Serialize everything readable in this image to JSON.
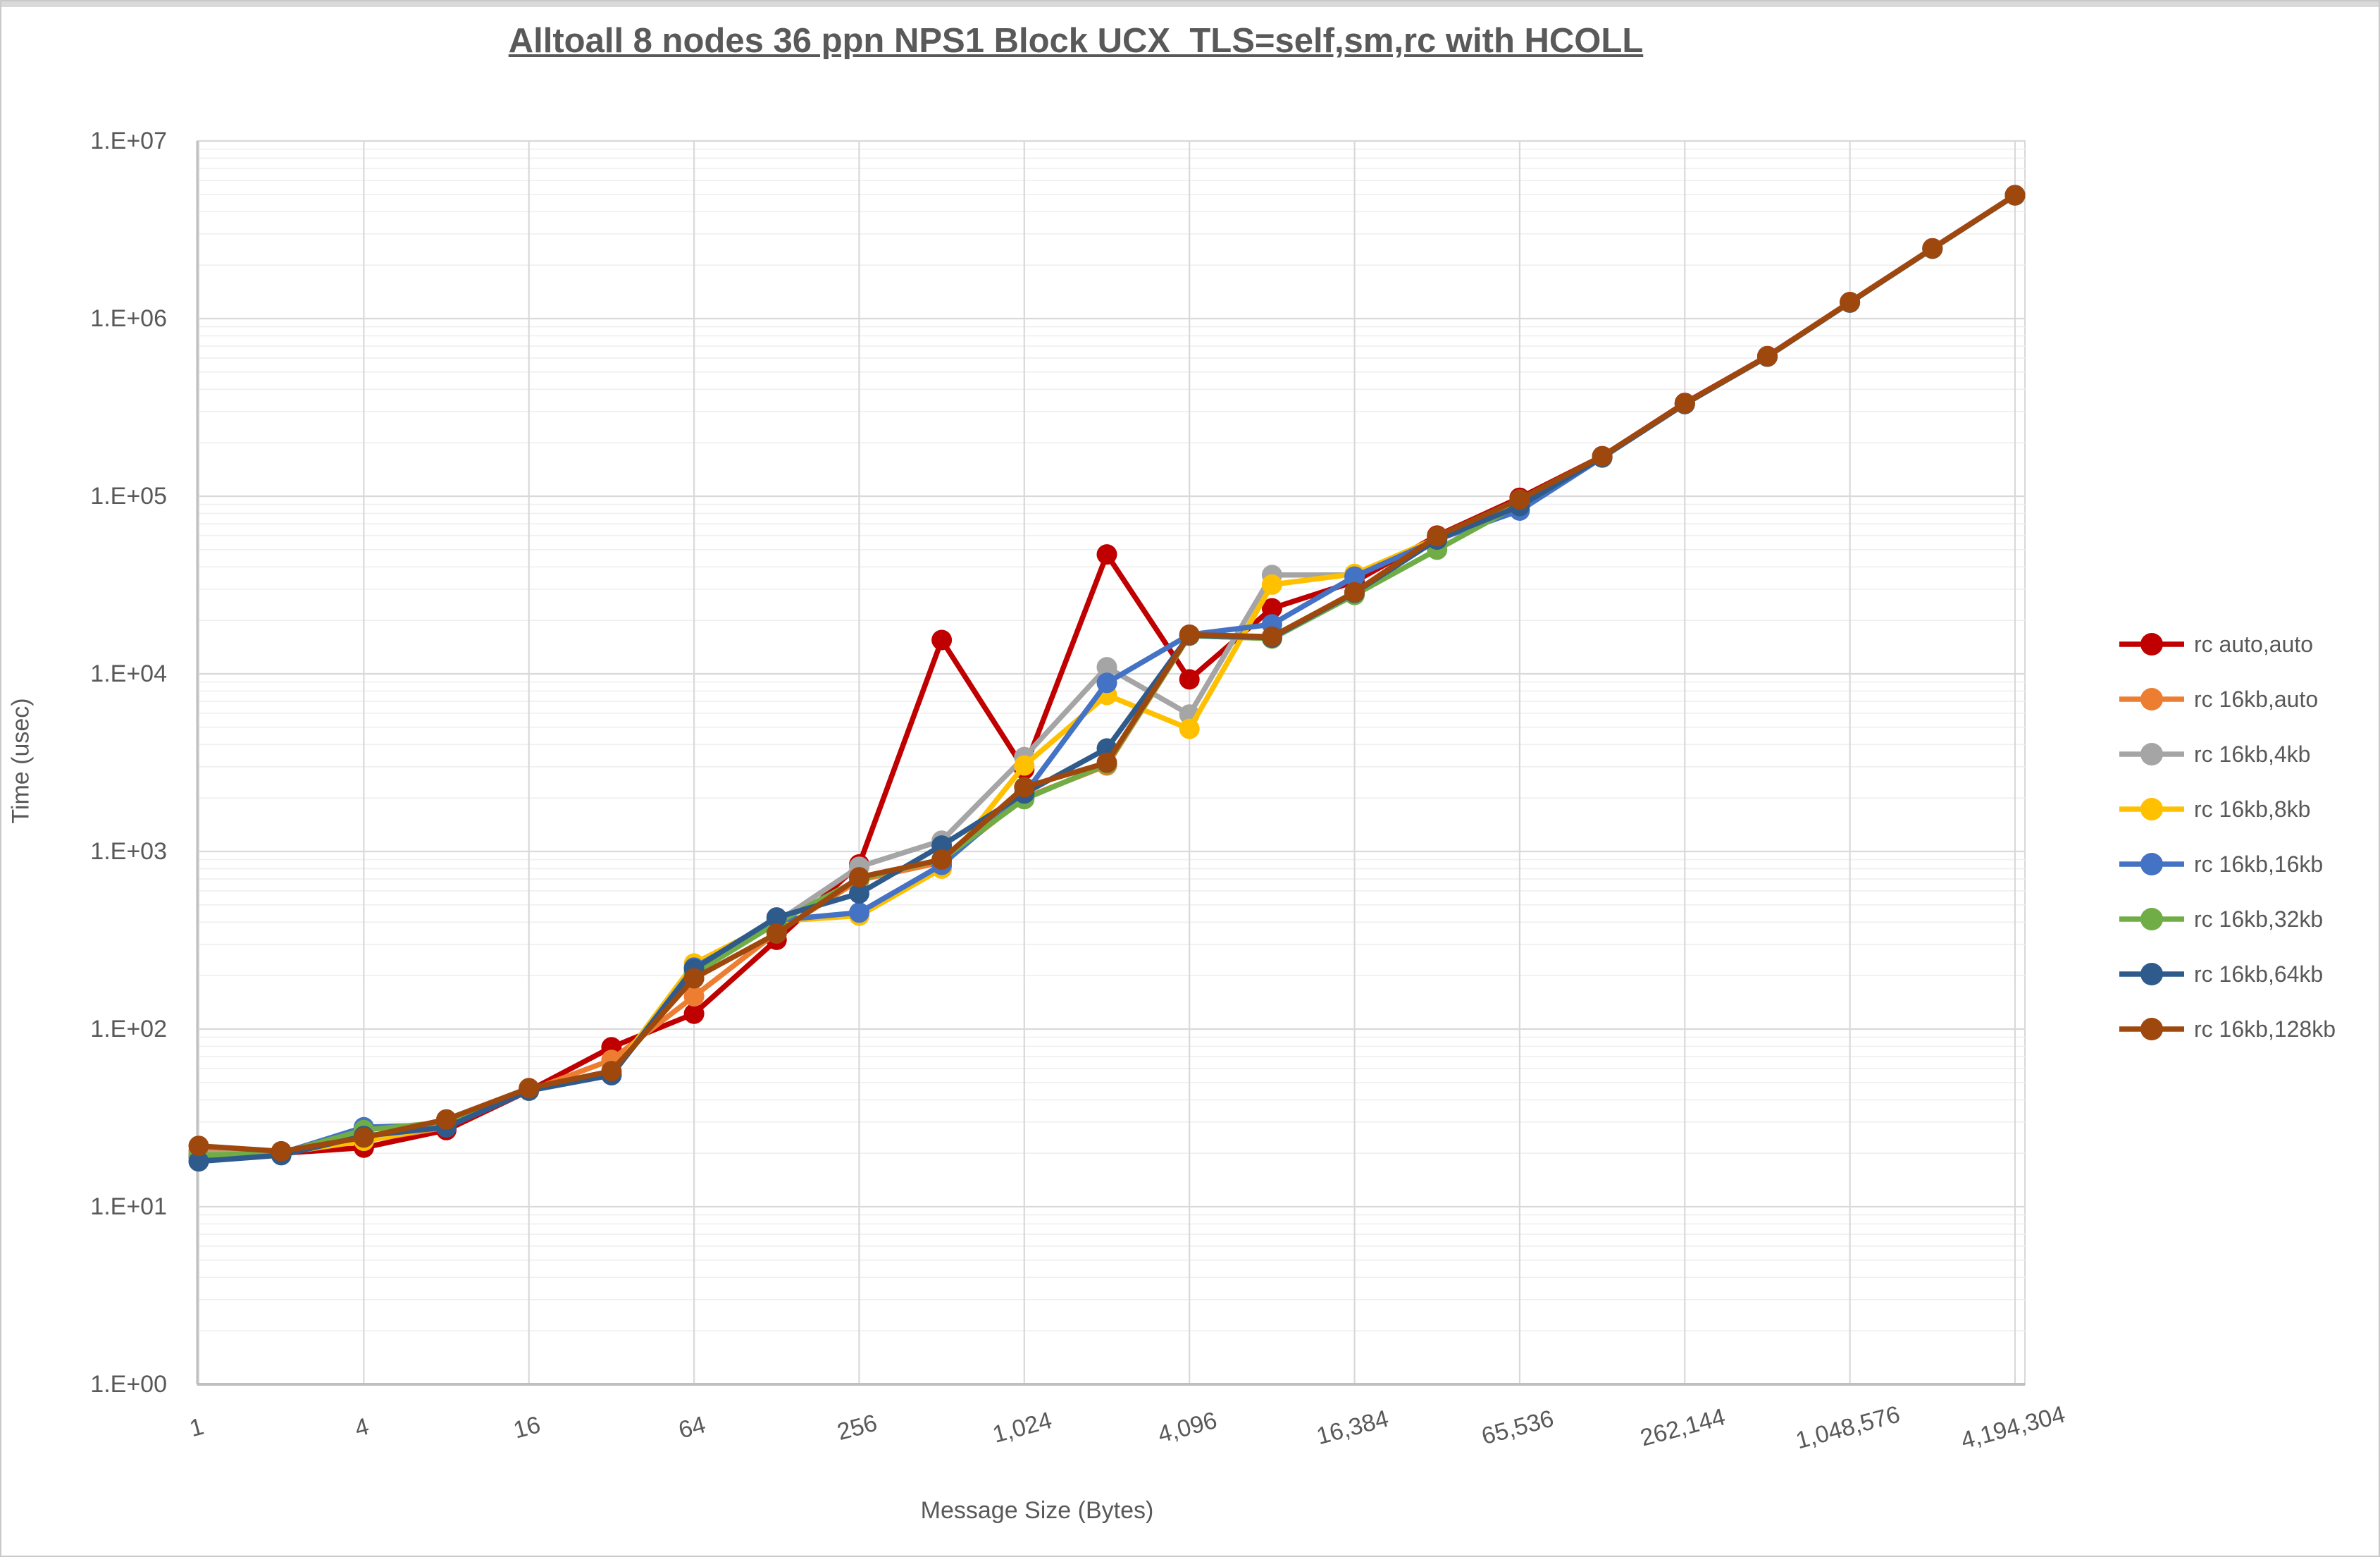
{
  "title": "Alltoall 8 nodes 36 ppn NPS1 Block UCX_TLS=self,sm,rc with HCOLL",
  "chart_data": {
    "type": "line",
    "title": "Alltoall 8 nodes 36 ppn NPS1 Block UCX_TLS=self,sm,rc with HCOLL",
    "xlabel": "Message Size (Bytes)",
    "ylabel": "Time (usec)",
    "x_scale": "log2",
    "y_scale": "log10",
    "xlim": [
      1,
      4194304
    ],
    "ylim": [
      1,
      10000000
    ],
    "grid": "major-and-minor-log",
    "legend_position": "right",
    "x": [
      1,
      2,
      4,
      8,
      16,
      32,
      64,
      128,
      256,
      512,
      1024,
      2048,
      4096,
      8192,
      16384,
      32768,
      65536,
      131072,
      262144,
      524288,
      1048576,
      2097152,
      4194304
    ],
    "x_tick_values": [
      1,
      4,
      16,
      64,
      256,
      1024,
      4096,
      16384,
      65536,
      262144,
      1048576,
      4194304
    ],
    "x_tick_labels": [
      "1",
      "4",
      "16",
      "64",
      "256",
      "1,024",
      "4,096",
      "16,384",
      "65,536",
      "262,144",
      "1,048,576",
      "4,194,304"
    ],
    "y_tick_values": [
      1,
      10,
      100,
      1000,
      10000,
      100000,
      1000000,
      10000000
    ],
    "y_tick_labels": [
      "1.E+00",
      "1.E+01",
      "1.E+02",
      "1.E+03",
      "1.E+04",
      "1.E+05",
      "1.E+06",
      "1.E+07"
    ],
    "series": [
      {
        "name": "rc auto,auto",
        "color": "#C00000",
        "values": [
          20.5,
          20,
          21.5,
          27,
          45,
          79,
          122,
          318,
          845,
          15500,
          2900,
          47000,
          9300,
          23400,
          33000,
          60000,
          98000,
          168000,
          335000,
          615000,
          1240000,
          2490000,
          4960000
        ]
      },
      {
        "name": "rc 16kb,auto",
        "color": "#ED7D31",
        "values": [
          20.5,
          20,
          23.5,
          28,
          45,
          67,
          153,
          350,
          690,
          870,
          2000,
          3050,
          16400,
          15800,
          28000,
          58000,
          95000,
          167000,
          332000,
          612000,
          1235000,
          2480000,
          4950000
        ]
      },
      {
        "name": "rc 16kb,4kb",
        "color": "#A5A5A5",
        "values": [
          20,
          20,
          24,
          28.5,
          45,
          57,
          210,
          400,
          820,
          1150,
          3400,
          10900,
          5900,
          36000,
          36000,
          58000,
          95000,
          167000,
          332000,
          612000,
          1235000,
          2480000,
          4950000
        ]
      },
      {
        "name": "rc 16kb,8kb",
        "color": "#FFC000",
        "values": [
          19.5,
          20,
          23.5,
          28.5,
          45,
          56,
          234,
          405,
          435,
          800,
          3050,
          7600,
          4900,
          31800,
          36500,
          58000,
          94000,
          166000,
          331000,
          611000,
          1233000,
          2478000,
          4945000
        ]
      },
      {
        "name": "rc 16kb,16kb",
        "color": "#4472C4",
        "values": [
          19,
          20,
          28,
          29,
          46,
          55,
          222,
          410,
          453,
          840,
          2100,
          8900,
          16600,
          19000,
          35300,
          57000,
          83000,
          165000,
          330000,
          610000,
          1230000,
          2475000,
          4940000
        ]
      },
      {
        "name": "rc 16kb,32kb",
        "color": "#70AD47",
        "values": [
          19.5,
          20,
          27,
          30,
          46,
          56,
          205,
          395,
          700,
          900,
          1970,
          3100,
          16400,
          15800,
          27800,
          50000,
          90000,
          166000,
          331000,
          611000,
          1232000,
          2477000,
          4943000
        ]
      },
      {
        "name": "rc 16kb,64kb",
        "color": "#2E5B8C",
        "values": [
          18,
          19.5,
          25,
          28,
          45,
          55,
          218,
          425,
          580,
          1080,
          2120,
          3800,
          16500,
          16000,
          28600,
          57000,
          88000,
          166000,
          331000,
          611000,
          1232000,
          2477000,
          4943000
        ]
      },
      {
        "name": "rc 16kb,128kb",
        "color": "#9E480E",
        "values": [
          22,
          20.5,
          24.5,
          31,
          46.5,
          58,
          193,
          345,
          716,
          900,
          2300,
          3160,
          16600,
          16200,
          28800,
          59500,
          96000,
          168000,
          333000,
          613000,
          1237000,
          2483000,
          4952000
        ]
      }
    ]
  }
}
